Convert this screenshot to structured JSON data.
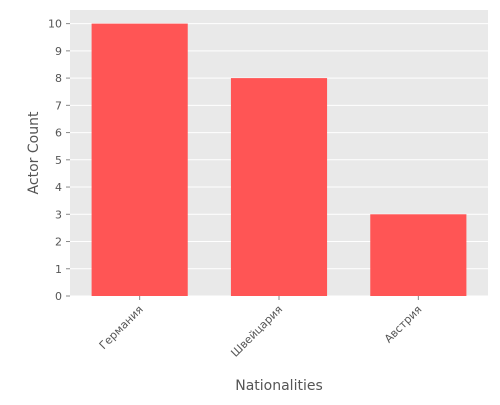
{
  "chart_data": {
    "type": "bar",
    "title": "",
    "xlabel": "Nationalities",
    "ylabel": "Actor Count",
    "categories": [
      "Германия",
      "Швейцария",
      "Австрия"
    ],
    "values": [
      10,
      8,
      3
    ],
    "ylim": [
      0,
      10.5
    ],
    "yticks": [
      0,
      1,
      2,
      3,
      4,
      5,
      6,
      7,
      8,
      9,
      10
    ],
    "grid": true,
    "legend": "none",
    "colors": {
      "bar": "#ff5555",
      "plot_background": "#e9e9e9",
      "grid": "#ffffff",
      "text": "#555555"
    }
  }
}
